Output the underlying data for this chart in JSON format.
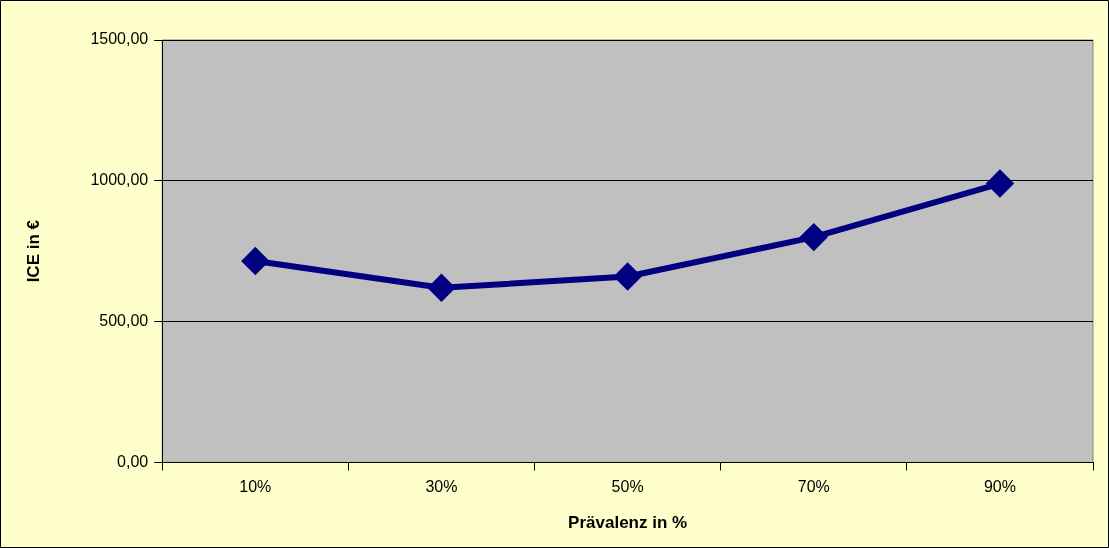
{
  "chart_data": {
    "type": "line",
    "xlabel": "Prävalenz in %",
    "ylabel": "ICE in €",
    "categories": [
      "10%",
      "30%",
      "50%",
      "70%",
      "90%"
    ],
    "series": [
      {
        "color": "#000080",
        "values": [
          715,
          620,
          660,
          800,
          990
        ]
      }
    ],
    "ylim": [
      0,
      1500
    ],
    "yticks": [
      {
        "value": 0,
        "label": "0,00"
      },
      {
        "value": 500,
        "label": "500,00"
      },
      {
        "value": 1000,
        "label": "1000,00"
      },
      {
        "value": 1500,
        "label": "1500,00"
      }
    ],
    "grid": "y",
    "legend": false,
    "marker": "diamond",
    "line_style": "solid"
  }
}
